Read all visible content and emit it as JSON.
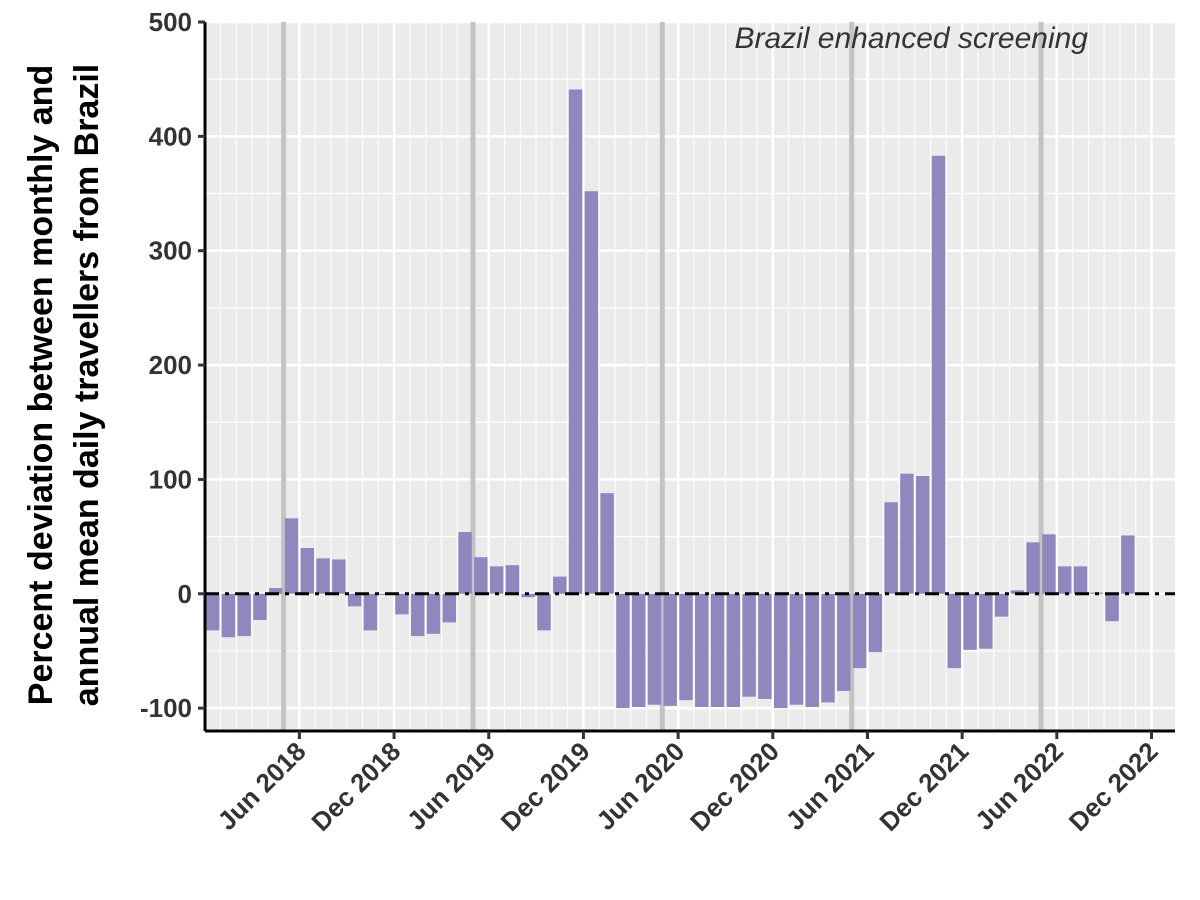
{
  "chart_data": {
    "type": "bar",
    "title": "",
    "xlabel": "",
    "ylabel_lines": [
      "Percent deviation between monthly and",
      "annual mean daily travellers from Brazil"
    ],
    "annotation": "Brazil enhanced screening",
    "start_month": "2018-01",
    "categories": [
      "2018-01",
      "2018-02",
      "2018-03",
      "2018-04",
      "2018-05",
      "2018-06",
      "2018-07",
      "2018-08",
      "2018-09",
      "2018-10",
      "2018-11",
      "2018-12",
      "2019-01",
      "2019-02",
      "2019-03",
      "2019-04",
      "2019-05",
      "2019-06",
      "2019-07",
      "2019-08",
      "2019-09",
      "2019-10",
      "2019-11",
      "2019-12",
      "2020-01",
      "2020-02",
      "2020-03",
      "2020-04",
      "2020-05",
      "2020-06",
      "2020-07",
      "2020-08",
      "2020-09",
      "2020-10",
      "2020-11",
      "2020-12",
      "2021-01",
      "2021-02",
      "2021-03",
      "2021-04",
      "2021-05",
      "2021-06",
      "2021-07",
      "2021-08",
      "2021-09",
      "2021-10",
      "2021-11",
      "2021-12",
      "2022-01",
      "2022-02",
      "2022-03",
      "2022-04",
      "2022-05",
      "2022-06",
      "2022-07",
      "2022-08",
      "2022-09",
      "2022-10",
      "2022-11",
      "2022-12"
    ],
    "values": [
      -32,
      -38,
      -37,
      -23,
      5,
      66,
      40,
      31,
      30,
      -11,
      -32,
      -1,
      -18,
      -37,
      -35,
      -25,
      54,
      32,
      24,
      25,
      -3,
      -32,
      15,
      441,
      352,
      88,
      -100,
      -99,
      -97,
      -98,
      -93,
      -99,
      -99,
      -99,
      -90,
      -92,
      -100,
      -97,
      -99,
      -95,
      -85,
      -65,
      -51,
      80,
      105,
      103,
      383,
      -65,
      -49,
      -48,
      -20,
      3,
      45,
      52,
      24,
      24,
      1,
      -24,
      51,
      0
    ],
    "bar_color": "#8e88bf",
    "zero_line": "dashed",
    "screening_lines": [
      "2018-06",
      "2019-06",
      "2020-06",
      "2021-06",
      "2022-06"
    ],
    "screening_line_color": "#c3c3c3",
    "yticks": [
      -100,
      0,
      100,
      200,
      300,
      400,
      500
    ],
    "ylim": [
      -120,
      500
    ],
    "xticks": [
      {
        "month": "2018-07",
        "label": "Jun 2018"
      },
      {
        "month": "2019-01",
        "label": "Dec 2018"
      },
      {
        "month": "2019-07",
        "label": "Jun 2019"
      },
      {
        "month": "2020-01",
        "label": "Dec 2019"
      },
      {
        "month": "2020-07",
        "label": "Jun 2020"
      },
      {
        "month": "2021-01",
        "label": "Dec 2020"
      },
      {
        "month": "2021-07",
        "label": "Jun 2021"
      },
      {
        "month": "2022-01",
        "label": "Dec 2021"
      },
      {
        "month": "2022-07",
        "label": "Jun 2022"
      },
      {
        "month": "2023-01",
        "label": "Dec 2022"
      }
    ],
    "grid": true,
    "panel_background": "#ebebeb"
  }
}
